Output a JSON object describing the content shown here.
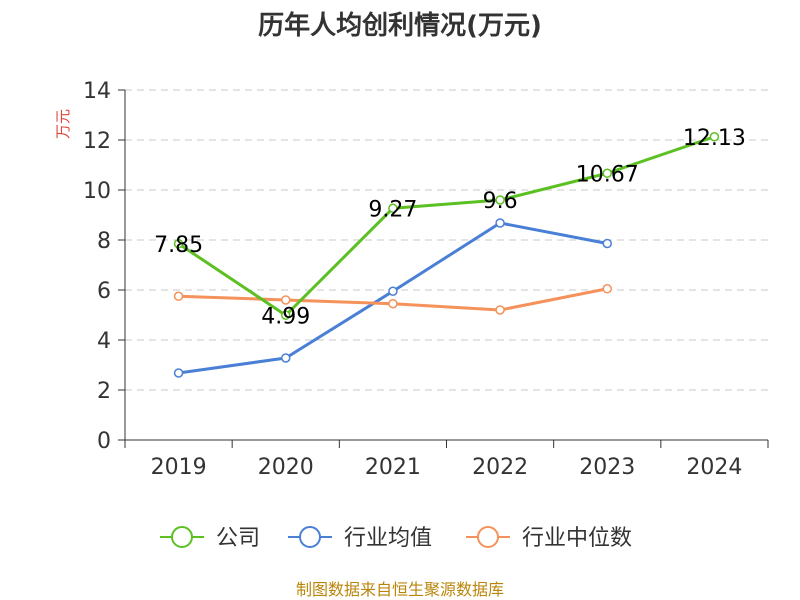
{
  "chart_data": {
    "type": "line",
    "title": "历年人均创利情况(万元)",
    "ylabel": "万元",
    "xlabel": "",
    "categories": [
      "2019",
      "2020",
      "2021",
      "2022",
      "2023",
      "2024"
    ],
    "ylim": [
      0,
      14
    ],
    "yticks": [
      0,
      2,
      4,
      6,
      8,
      10,
      12,
      14
    ],
    "grid": true,
    "legend_position": "bottom",
    "series": [
      {
        "name": "公司",
        "color": "#5cc022",
        "values": [
          7.85,
          4.99,
          9.27,
          9.6,
          10.67,
          12.13
        ],
        "labels": [
          "7.85",
          "4.99",
          "9.27",
          "9.6",
          "10.67",
          "12.13"
        ]
      },
      {
        "name": "行业均值",
        "color": "#4a7fd6",
        "values": [
          2.68,
          3.28,
          5.95,
          8.68,
          7.86,
          null
        ]
      },
      {
        "name": "行业中位数",
        "color": "#f5915a",
        "values": [
          5.75,
          5.6,
          5.45,
          5.2,
          6.05,
          null
        ]
      }
    ],
    "source": "制图数据来自恒生聚源数据库"
  }
}
